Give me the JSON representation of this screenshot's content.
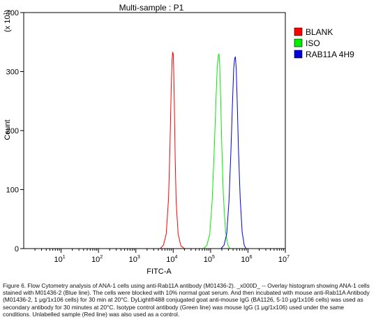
{
  "chart_data": {
    "type": "line",
    "title": "Multi-sample : P1",
    "xlabel": "FITC-A",
    "ylabel": "Count",
    "y_multiplier": "(x 10^1)",
    "x_scale": "log",
    "xlim": [
      1,
      10000000
    ],
    "ylim": [
      0,
      400
    ],
    "x_ticks": [
      {
        "value": 10,
        "base": "10",
        "exp": "1"
      },
      {
        "value": 100,
        "base": "10",
        "exp": "2"
      },
      {
        "value": 1000,
        "base": "10",
        "exp": "3"
      },
      {
        "value": 10000,
        "base": "10",
        "exp": "4"
      },
      {
        "value": 100000,
        "base": "10",
        "exp": "5"
      },
      {
        "value": 1000000,
        "base": "10",
        "exp": "6"
      },
      {
        "value": 10000000,
        "base": "10",
        "exp": "7"
      }
    ],
    "y_ticks": [
      0,
      100,
      200,
      300,
      400
    ],
    "grid": false,
    "legend_position": "right",
    "series": [
      {
        "name": "BLANK",
        "color": "#ff0000",
        "x": [
          4500,
          5500,
          6500,
          7500,
          8200,
          8800,
          9300,
          9700,
          10000,
          10300,
          10700,
          11300,
          12000,
          13500,
          16000,
          20000
        ],
        "y": [
          0,
          6,
          25,
          85,
          175,
          265,
          320,
          333,
          330,
          305,
          245,
          155,
          80,
          25,
          5,
          0
        ]
      },
      {
        "name": "ISO",
        "color": "#00ee00",
        "x": [
          65000,
          80000,
          95000,
          110000,
          125000,
          138000,
          150000,
          160000,
          168000,
          176000,
          186000,
          200000,
          220000,
          250000,
          290000,
          330000
        ],
        "y": [
          0,
          6,
          25,
          80,
          165,
          245,
          305,
          327,
          330,
          310,
          255,
          170,
          90,
          30,
          6,
          0
        ]
      },
      {
        "name": "RAB11A 4H9",
        "color": "#0000dd",
        "x": [
          190000,
          230000,
          270000,
          310000,
          350000,
          385000,
          415000,
          440000,
          460000,
          485000,
          515000,
          560000,
          620000,
          700000,
          800000,
          900000
        ],
        "y": [
          0,
          6,
          25,
          80,
          165,
          245,
          305,
          322,
          325,
          305,
          250,
          165,
          85,
          28,
          5,
          0
        ]
      }
    ]
  },
  "caption": "Figure 6. Flow Cytometry analysis of ANA-1 cells using anti-Rab11A antibody (M01436-2). _x000D_ -- Overlay histogram showing ANA-1 cells stained with M01436-2 (Blue line). The cells were blocked with 10% normal goat serum. And then incubated with mouse anti-Rab11A Antibody (M01436-2, 1 μg/1x106 cells) for 30 min at 20°C. DyLight®488 conjugated goat anti-mouse IgG (BA1126, 5-10 μg/1x106 cells) was used as secondary antibody for 30 minutes at 20°C. Isotype control antibody (Green line) was mouse IgG (1 μg/1x106) used under the same conditions. Unlabelled sample (Red line) was also used as a control."
}
